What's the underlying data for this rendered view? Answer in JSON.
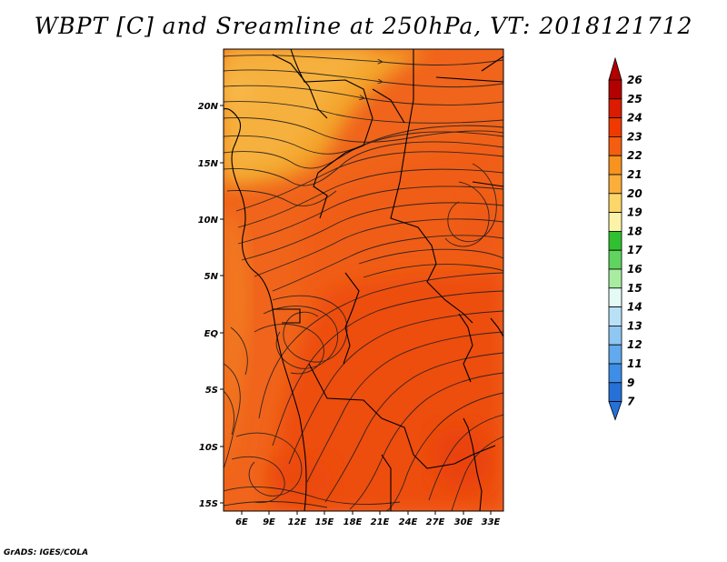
{
  "title": "WBPT [C] and Sreamline at 250hPa, VT: 2018121712",
  "credit": "GrADS: IGES/COLA",
  "map": {
    "lat_range": [
      -16,
      25
    ],
    "lon_range": [
      3.5,
      34
    ],
    "lat_ticks": [
      "20N",
      "15N",
      "10N",
      "5N",
      "EQ",
      "5S",
      "10S",
      "15S"
    ],
    "lon_ticks": [
      "6E",
      "9E",
      "12E",
      "15E",
      "18E",
      "21E",
      "24E",
      "27E",
      "30E",
      "33E"
    ],
    "field": "wet-bulb potential temperature (shaded)",
    "overlay": "streamlines",
    "dominant_colors": {
      "north_band": "#f3a21c",
      "central": "#f16a12",
      "south": "#ee4d0e",
      "warm_pocket": "#ec4a0b"
    }
  },
  "colorbar": {
    "labels": [
      "26",
      "25",
      "24",
      "23",
      "22",
      "21",
      "20",
      "19",
      "18",
      "17",
      "16",
      "15",
      "14",
      "13",
      "12",
      "11",
      "9",
      "7"
    ],
    "colors": [
      "#b30000",
      "#dc1c00",
      "#ee3a00",
      "#f45e10",
      "#f7931e",
      "#fbae3a",
      "#fdd66a",
      "#fdf3a8",
      "#30c030",
      "#5fd45f",
      "#a8eca0",
      "#e3fbf4",
      "#b8e1f7",
      "#8fc7f3",
      "#62a9ee",
      "#3d8ee7",
      "#2571d8"
    ]
  }
}
